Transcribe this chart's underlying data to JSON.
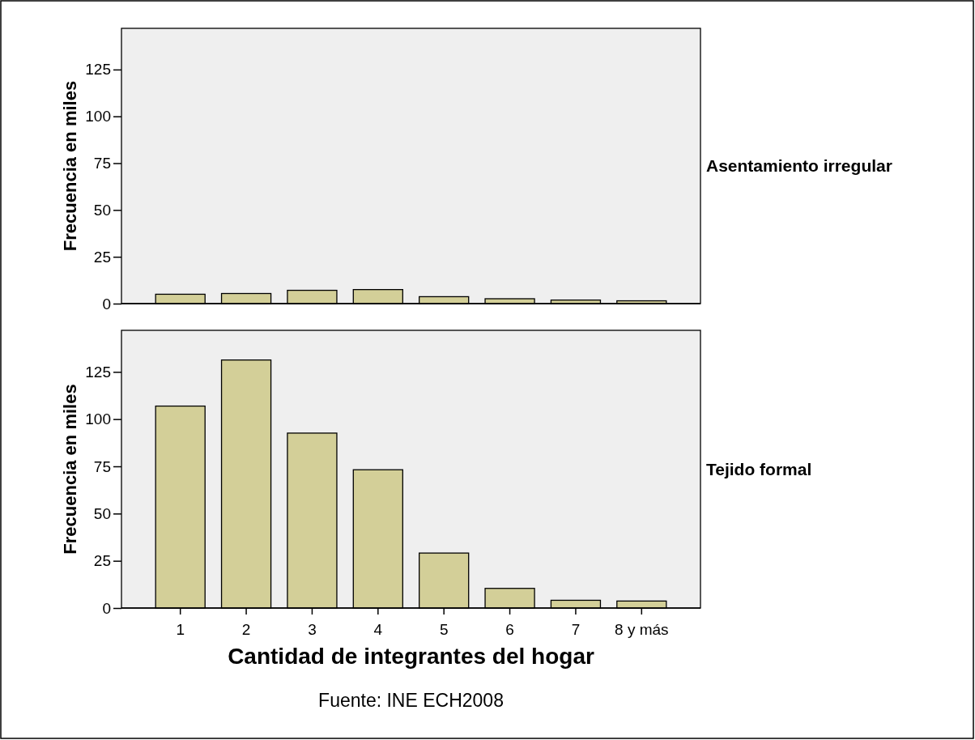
{
  "chart_data": [
    {
      "type": "bar",
      "title": "Asentamiento irregular",
      "ylabel": "Frecuencia en miles",
      "categories": [
        null,
        null,
        null,
        null,
        null,
        null,
        null,
        null
      ],
      "values": [
        5.0,
        5.4,
        7.1,
        7.5,
        3.7,
        2.6,
        1.9,
        1.5
      ],
      "color": "#d3cf98",
      "ylim": [
        0,
        147
      ],
      "yticks": [
        0,
        25,
        50,
        75,
        100,
        125
      ],
      "grid": false,
      "tick_labels": "y"
    },
    {
      "type": "bar",
      "title": "Tejido formal",
      "ylabel": "Frecuencia en miles",
      "xlabel": "Cantidad de integrantes del hogar",
      "categories": [
        "1",
        "2",
        "3",
        "4",
        "5",
        "6",
        "7",
        "8 y más"
      ],
      "values": [
        106.9,
        131.3,
        92.6,
        73.2,
        29.1,
        10.4,
        4.1,
        3.7
      ],
      "color": "#d3cf98",
      "ylim": [
        0,
        147
      ],
      "yticks": [
        0,
        25,
        50,
        75,
        100,
        125
      ],
      "grid": false,
      "annotations": [
        "Fuente: INE ECH2008"
      ]
    }
  ]
}
